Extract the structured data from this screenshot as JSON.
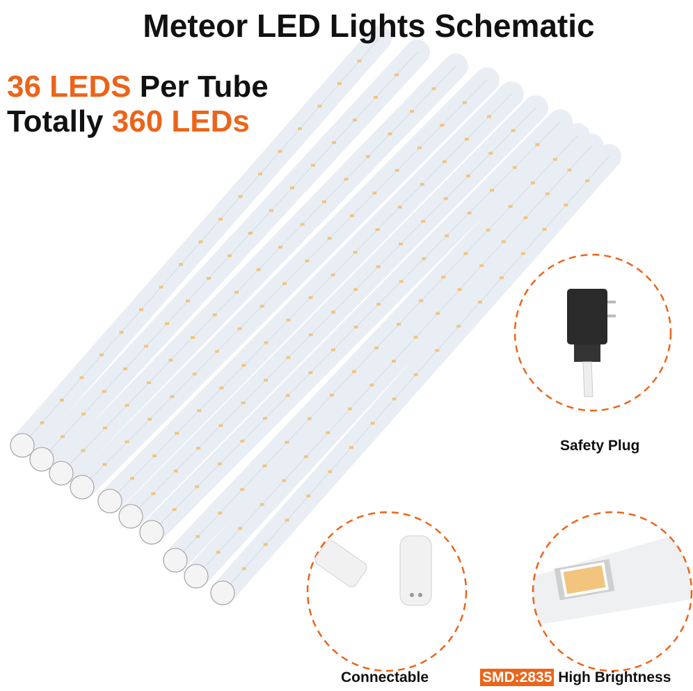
{
  "title": "Meteor LED Lights Schematic",
  "headline": {
    "line1_highlight": "36 LEDS",
    "line1_rest": " Per Tube",
    "line2_prefix": "Totally ",
    "line2_highlight": "360 LEDs"
  },
  "callouts": {
    "plug_caption": "Safety Plug",
    "connector_caption": "Connectable",
    "smd_badge": "SMD:2835",
    "smd_caption": " High Brightness"
  },
  "colors": {
    "accent": "#ec6419",
    "led": "#f3c47e",
    "tube": "#e9eef4"
  }
}
